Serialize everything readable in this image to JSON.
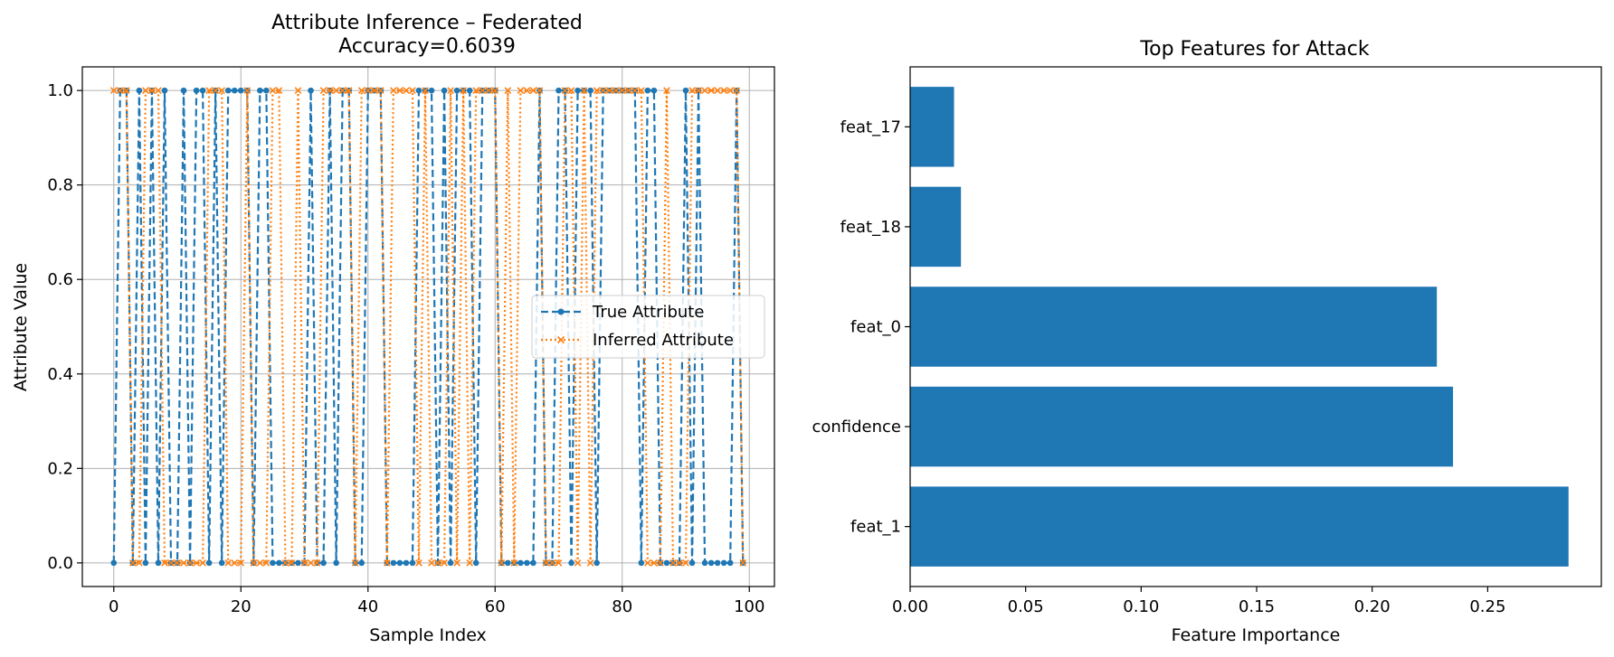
{
  "colors": {
    "blue": "#1f77b4",
    "orange": "#ff7f0e",
    "grid": "#b0b0b0"
  },
  "chart_data": [
    {
      "type": "line",
      "title": "Attribute Inference – Federated",
      "subtitle": "Accuracy=0.6039",
      "xlabel": "Sample Index",
      "ylabel": "Attribute Value",
      "xlim": [
        -4.95,
        103.95
      ],
      "ylim": [
        -0.05,
        1.05
      ],
      "xticks": [
        0,
        20,
        40,
        60,
        80,
        100
      ],
      "yticks": [
        0.0,
        0.2,
        0.4,
        0.6,
        0.8,
        1.0
      ],
      "grid": true,
      "legend": "center-right",
      "x_start": 0,
      "series": [
        {
          "name": "True Attribute",
          "style": "dashed",
          "marker": "circle",
          "values": [
            0,
            1,
            1,
            0,
            1,
            0,
            1,
            0,
            1,
            0,
            0,
            1,
            0,
            1,
            1,
            0,
            1,
            0,
            1,
            1,
            1,
            1,
            0,
            1,
            1,
            0,
            0,
            0,
            0,
            0,
            0,
            1,
            0,
            0,
            1,
            0,
            1,
            1,
            0,
            0,
            1,
            1,
            1,
            0,
            0,
            0,
            0,
            0,
            1,
            1,
            1,
            0,
            1,
            0,
            1,
            1,
            1,
            0,
            1,
            1,
            1,
            0,
            0,
            0,
            0,
            0,
            0,
            1,
            0,
            0,
            1,
            1,
            0,
            1,
            1,
            1,
            0,
            1,
            1,
            1,
            1,
            1,
            1,
            0,
            1,
            1,
            0,
            0,
            0,
            0,
            1,
            0,
            1,
            0,
            0,
            0,
            0,
            0,
            1,
            0
          ]
        },
        {
          "name": "Inferred Attribute",
          "style": "dotted",
          "marker": "x",
          "values": [
            1,
            1,
            1,
            0,
            0,
            1,
            1,
            1,
            0,
            0,
            0,
            0,
            0,
            0,
            0,
            1,
            1,
            1,
            0,
            0,
            0,
            1,
            0,
            0,
            0,
            1,
            1,
            0,
            0,
            1,
            0,
            0,
            0,
            1,
            1,
            1,
            1,
            1,
            0,
            1,
            1,
            1,
            1,
            0,
            1,
            1,
            1,
            1,
            0,
            1,
            0,
            0,
            0,
            1,
            0,
            1,
            0,
            1,
            1,
            1,
            1,
            0,
            1,
            0,
            1,
            1,
            1,
            1,
            0,
            0,
            0,
            1,
            1,
            0,
            1,
            0,
            1,
            1,
            1,
            1,
            1,
            1,
            1,
            1,
            0,
            0,
            0,
            1,
            0,
            0,
            0,
            1,
            1,
            1,
            1,
            1,
            1,
            1,
            1,
            0
          ]
        }
      ]
    },
    {
      "type": "bar",
      "orientation": "horizontal",
      "title": "Top Features for Attack",
      "xlabel": "Feature Importance",
      "ylabel": "",
      "xlim": [
        0,
        0.2992
      ],
      "xticks": [
        "0.00",
        "0.05",
        "0.10",
        "0.15",
        "0.20",
        "0.25"
      ],
      "grid": false,
      "categories": [
        "feat_1",
        "confidence",
        "feat_0",
        "feat_18",
        "feat_17"
      ],
      "values": [
        0.285,
        0.235,
        0.228,
        0.022,
        0.019
      ]
    }
  ]
}
